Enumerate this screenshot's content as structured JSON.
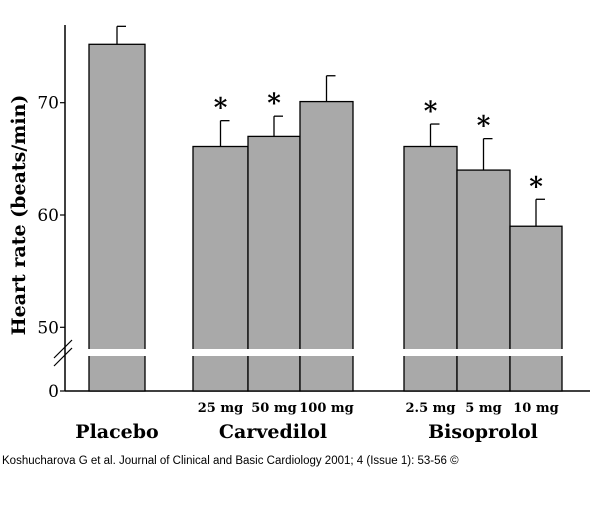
{
  "chart_data": {
    "type": "bar",
    "title": "",
    "ylabel": "Heart rate (beats/min)",
    "xlabel": "",
    "ylim": [
      0,
      77
    ],
    "axis_break": [
      46,
      49
    ],
    "y_ticks": [
      "0",
      "50",
      "60",
      "70"
    ],
    "grid": false,
    "bar_color": "#a9a9a9",
    "groups": [
      {
        "label": "Placebo",
        "bars": [
          {
            "dose": "",
            "value": 75.2,
            "error": 1.6,
            "significant": false
          }
        ]
      },
      {
        "label": "Carvedilol",
        "bars": [
          {
            "dose": "25 mg",
            "value": 66.1,
            "error": 2.3,
            "significant": true
          },
          {
            "dose": "50 mg",
            "value": 67.0,
            "error": 1.8,
            "significant": true
          },
          {
            "dose": "100 mg",
            "value": 70.1,
            "error": 2.3,
            "significant": false
          }
        ]
      },
      {
        "label": "Bisoprolol",
        "bars": [
          {
            "dose": "2.5 mg",
            "value": 66.1,
            "error": 2.0,
            "significant": true
          },
          {
            "dose": "5 mg",
            "value": 64.0,
            "error": 2.8,
            "significant": true
          },
          {
            "dose": "10 mg",
            "value": 59.0,
            "error": 2.4,
            "significant": true
          }
        ]
      }
    ],
    "significance_marker": "*"
  },
  "caption": "Koshucharova G et al. Journal of Clinical and Basic Cardiology 2001; 4 (Issue 1): 53-56 ©"
}
